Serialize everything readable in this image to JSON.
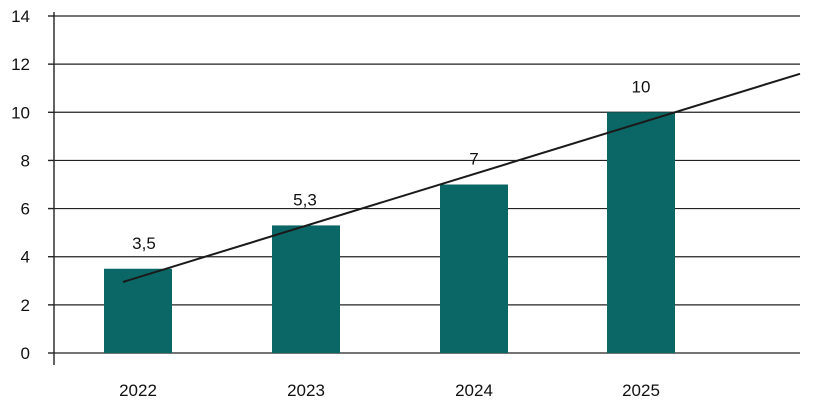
{
  "chart_data": {
    "type": "bar",
    "categories": [
      "2022",
      "2023",
      "2024",
      "2025"
    ],
    "values": [
      3.5,
      5.3,
      7,
      10
    ],
    "data_labels": [
      "3,5",
      "5,3",
      "7",
      "10"
    ],
    "y_ticks": [
      "0",
      "2",
      "4",
      "6",
      "8",
      "10",
      "12",
      "14"
    ],
    "y_tick_values": [
      0,
      2,
      4,
      6,
      8,
      10,
      12,
      14
    ],
    "ylim": [
      0,
      14
    ],
    "grid": true,
    "legend": "none",
    "bar_color": "#0b6666",
    "trendline": {
      "type": "linear",
      "start_value": 2.95,
      "end_value": 11.6
    }
  }
}
